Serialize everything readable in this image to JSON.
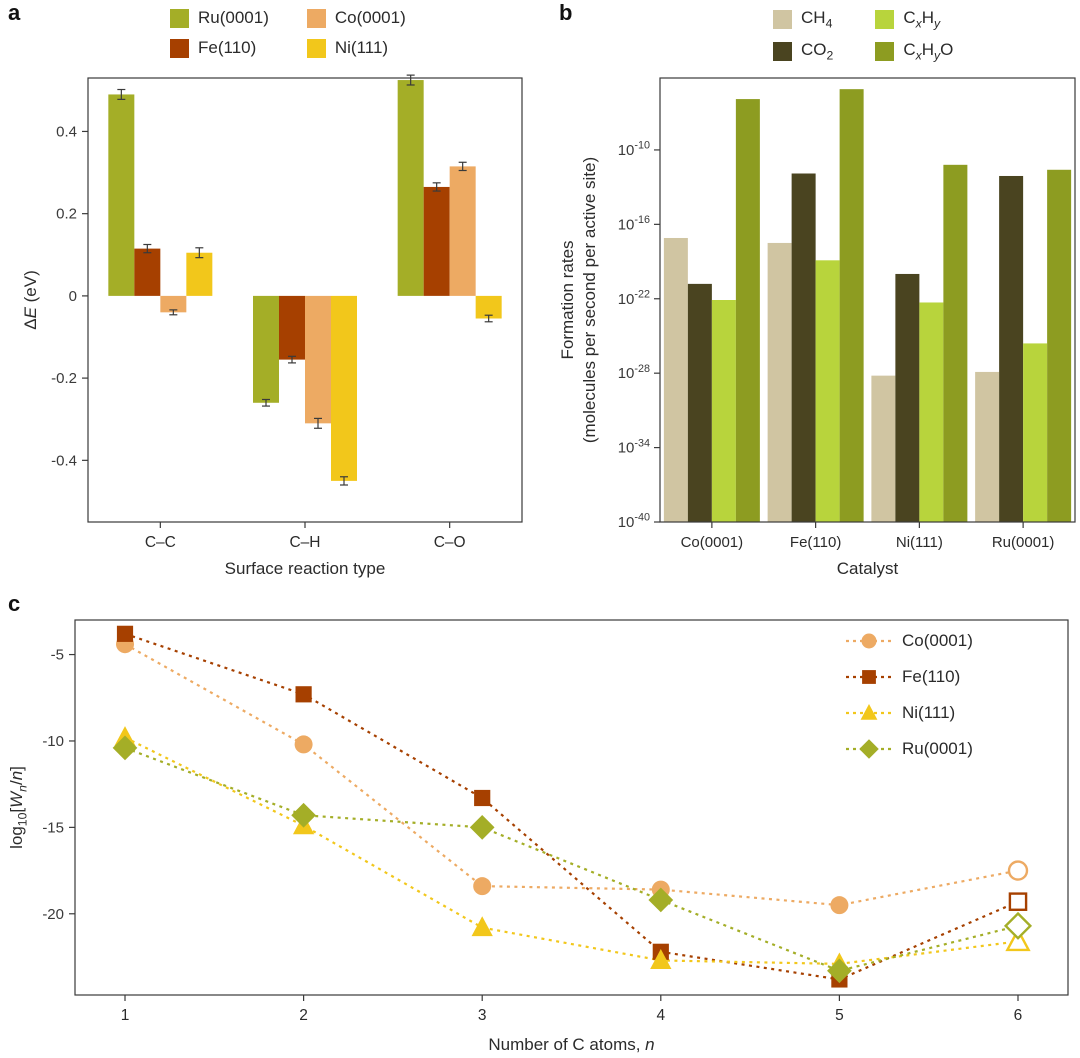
{
  "colors": {
    "background": "#ffffff",
    "axis": "#3a3a3a",
    "text": "#2b2b2b",
    "error_bar": "#3a3a3a"
  },
  "chart_data": [
    {
      "panel_label": "a",
      "type": "bar",
      "xlabel": "Surface reaction type",
      "ylabel_segments": [
        {
          "t": "Δ"
        },
        {
          "t": "E",
          "i": true
        },
        {
          "t": " (eV)"
        }
      ],
      "categories": [
        "C–C",
        "C–H",
        "C–O"
      ],
      "ylim": [
        -0.55,
        0.53
      ],
      "yticks": [
        0.4,
        0.2,
        0,
        -0.2,
        -0.4
      ],
      "legend_layout": "2-column grid, above plot",
      "series": [
        {
          "name": "Ru(0001)",
          "color": "#a4ae27",
          "values": [
            0.49,
            -0.26,
            0.525
          ],
          "errors": [
            0.012,
            0.008,
            0.012
          ]
        },
        {
          "name": "Fe(110)",
          "color": "#a64000",
          "values": [
            0.115,
            -0.155,
            0.265
          ],
          "errors": [
            0.01,
            0.008,
            0.01
          ]
        },
        {
          "name": "Co(0001)",
          "color": "#edaa63",
          "values": [
            -0.04,
            -0.31,
            0.315
          ],
          "errors": [
            0.006,
            0.012,
            0.01
          ]
        },
        {
          "name": "Ni(111)",
          "color": "#f2c71b",
          "values": [
            0.105,
            -0.45,
            -0.055
          ],
          "errors": [
            0.012,
            0.01,
            0.008
          ]
        }
      ]
    },
    {
      "panel_label": "b",
      "type": "bar",
      "scale": "log10",
      "xlabel": "Catalyst",
      "ylabel_lines": [
        "Formation rates",
        "(molecules per second per active site)"
      ],
      "categories": [
        "Co(0001)",
        "Fe(110)",
        "Ni(111)",
        "Ru(0001)"
      ],
      "ylim_exponents": [
        -40,
        -4.2
      ],
      "ytick_exponents": [
        -10,
        -16,
        -22,
        -28,
        -34,
        -40
      ],
      "series": [
        {
          "name": "CH4",
          "label_segments": [
            {
              "t": "CH"
            },
            {
              "t": "4",
              "sub": true
            }
          ],
          "color": "#d0c5a2",
          "exponents": [
            -17.1,
            -17.5,
            -28.2,
            -27.9
          ]
        },
        {
          "name": "CO2",
          "label_segments": [
            {
              "t": "CO"
            },
            {
              "t": "2",
              "sub": true
            }
          ],
          "color": "#4a4420",
          "exponents": [
            -20.8,
            -11.9,
            -20.0,
            -12.1
          ]
        },
        {
          "name": "CxHy",
          "label_segments": [
            {
              "t": "C"
            },
            {
              "t": "x",
              "sub": true,
              "i": true
            },
            {
              "t": "H"
            },
            {
              "t": "y",
              "sub": true,
              "i": true
            }
          ],
          "color": "#b8d43c",
          "exponents": [
            -22.1,
            -18.9,
            -22.3,
            -25.6
          ]
        },
        {
          "name": "CxHyO",
          "label_segments": [
            {
              "t": "C"
            },
            {
              "t": "x",
              "sub": true,
              "i": true
            },
            {
              "t": "H"
            },
            {
              "t": "y",
              "sub": true,
              "i": true
            },
            {
              "t": "O"
            }
          ],
          "color": "#8d9c21",
          "exponents": [
            -5.9,
            -5.1,
            -11.2,
            -11.6
          ]
        }
      ]
    },
    {
      "panel_label": "c",
      "type": "line",
      "line_style": "dashed",
      "xlabel_segments": [
        {
          "t": "Number of C atoms, "
        },
        {
          "t": "n",
          "i": true
        }
      ],
      "ylabel_segments": [
        {
          "t": "log"
        },
        {
          "t": "10",
          "sub": true
        },
        {
          "t": "["
        },
        {
          "t": "W",
          "i": true
        },
        {
          "t": "n",
          "i": true,
          "sub": true
        },
        {
          "t": "/"
        },
        {
          "t": "n",
          "i": true
        },
        {
          "t": "]"
        }
      ],
      "x": [
        1,
        2,
        3,
        4,
        5,
        6
      ],
      "xlim": [
        0.72,
        6.28
      ],
      "ylim": [
        -24.7,
        -3.0
      ],
      "yticks": [
        -5,
        -10,
        -15,
        -20
      ],
      "open_last_point": true,
      "legend_position": "inside top-right",
      "series": [
        {
          "name": "Co(0001)",
          "color": "#edaa63",
          "marker": "circle",
          "values": [
            -4.4,
            -10.2,
            -18.4,
            -18.6,
            -19.5,
            -17.5
          ]
        },
        {
          "name": "Fe(110)",
          "color": "#a64000",
          "marker": "square",
          "values": [
            -3.8,
            -7.3,
            -13.3,
            -22.2,
            -23.8,
            -19.3
          ]
        },
        {
          "name": "Ni(111)",
          "color": "#f2c71b",
          "marker": "triangle",
          "values": [
            -9.8,
            -14.9,
            -20.8,
            -22.7,
            -22.9,
            -21.6
          ]
        },
        {
          "name": "Ru(0001)",
          "color": "#a4ae27",
          "marker": "diamond",
          "values": [
            -10.4,
            -14.3,
            -15.0,
            -19.2,
            -23.3,
            -20.7
          ]
        }
      ]
    }
  ]
}
